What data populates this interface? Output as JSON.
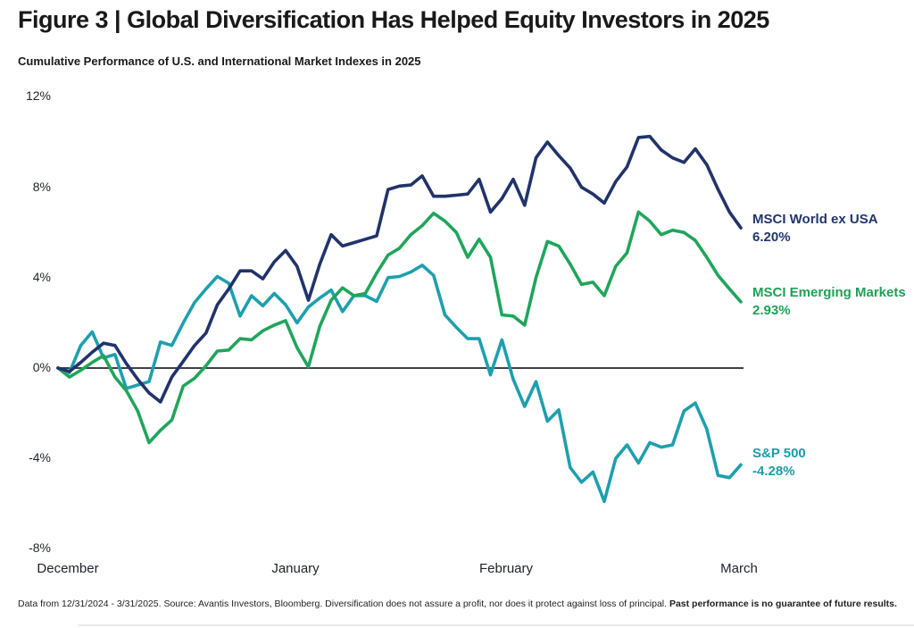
{
  "header": {
    "title": "Figure 3 | Global Diversification Has Helped Equity Investors in 2025",
    "subtitle": "Cumulative Performance of U.S. and International Market Indexes in 2025"
  },
  "chart_data": {
    "type": "line",
    "title": "Cumulative Performance of U.S. and International Market Indexes in 2025",
    "date_range": "12/31/2024 - 3/31/2025",
    "x_unit": "trading days from 12/31/2024 (0) to 3/31/2025 (60)",
    "x_axis_months": [
      "December",
      "January",
      "February",
      "March"
    ],
    "y_ticks": [
      "12%",
      "8%",
      "4%",
      "0%",
      "-4%",
      "-8%"
    ],
    "y_tick_values": [
      12,
      8,
      4,
      0,
      -4,
      -8
    ],
    "ylim": [
      -8,
      12
    ],
    "grid": "zero-baseline-only",
    "legend_position": "right-of-line-ends",
    "zero_line_color": "#3d424b",
    "series": [
      {
        "name": "MSCI World ex USA",
        "final_label": "6.20%",
        "final_value": 6.2,
        "color": "#21336a",
        "values": [
          0,
          -0.15,
          0.25,
          0.7,
          1.1,
          1.0,
          0.2,
          -0.5,
          -1.1,
          -1.5,
          -0.4,
          0.3,
          1.0,
          1.55,
          2.8,
          3.5,
          4.3,
          4.3,
          3.95,
          4.7,
          5.2,
          4.5,
          3.0,
          4.6,
          5.9,
          5.4,
          5.55,
          5.7,
          5.85,
          7.9,
          8.05,
          8.1,
          8.5,
          7.6,
          7.6,
          7.65,
          7.7,
          8.35,
          6.9,
          7.5,
          8.35,
          7.2,
          9.3,
          10.0,
          9.4,
          8.85,
          8.0,
          7.7,
          7.3,
          8.25,
          8.9,
          10.2,
          10.25,
          9.65,
          9.3,
          9.1,
          9.7,
          9.0,
          7.9,
          6.9,
          6.2
        ]
      },
      {
        "name": "MSCI Emerging Markets",
        "final_label": "2.93%",
        "final_value": 2.93,
        "color": "#20a55b",
        "values": [
          0,
          -0.4,
          -0.1,
          0.25,
          0.55,
          -0.4,
          -1.0,
          -1.9,
          -3.3,
          -2.75,
          -2.3,
          -0.8,
          -0.45,
          0.1,
          0.75,
          0.8,
          1.3,
          1.25,
          1.65,
          1.9,
          2.1,
          0.9,
          0.05,
          1.85,
          3.0,
          3.55,
          3.2,
          3.3,
          4.2,
          5.0,
          5.3,
          5.9,
          6.3,
          6.85,
          6.5,
          6.0,
          4.9,
          5.7,
          4.9,
          2.35,
          2.3,
          1.9,
          4.0,
          5.6,
          5.4,
          4.6,
          3.7,
          3.8,
          3.2,
          4.5,
          5.1,
          6.9,
          6.5,
          5.9,
          6.1,
          6.0,
          5.65,
          4.9,
          4.1,
          3.5,
          2.93
        ]
      },
      {
        "name": "S&P 500",
        "final_label": "-4.28%",
        "final_value": -4.28,
        "color": "#1e9fae",
        "values": [
          0,
          -0.2,
          1.0,
          1.6,
          0.45,
          0.6,
          -0.9,
          -0.75,
          -0.6,
          1.15,
          1.0,
          2.0,
          2.9,
          3.5,
          4.05,
          3.75,
          2.3,
          3.2,
          2.75,
          3.3,
          2.8,
          2.0,
          2.7,
          3.1,
          3.45,
          2.5,
          3.2,
          3.2,
          2.95,
          4.0,
          4.05,
          4.25,
          4.55,
          4.1,
          2.35,
          1.8,
          1.3,
          1.3,
          -0.3,
          1.25,
          -0.5,
          -1.7,
          -0.6,
          -2.35,
          -1.85,
          -4.4,
          -5.05,
          -4.6,
          -5.9,
          -4.0,
          -3.4,
          -4.2,
          -3.3,
          -3.5,
          -3.4,
          -1.9,
          -1.55,
          -2.7,
          -4.75,
          -4.85,
          -4.28
        ]
      }
    ]
  },
  "footer": {
    "text": "Data from 12/31/2024 - 3/31/2025. Source: Avantis Investors, Bloomberg. Diversification does not assure a profit, nor does it protect against loss of principal. ",
    "bold_text": "Past performance is no guarantee of future results."
  }
}
